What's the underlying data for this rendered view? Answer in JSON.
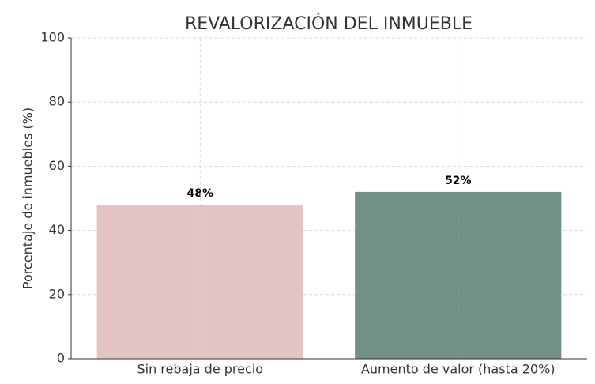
{
  "chart_data": {
    "type": "bar",
    "title": "REVALORIZACIÓN DEL INMUEBLE",
    "y_label": "Porcentaje de inmuebles (%)",
    "categories": [
      "Sin rebaja de precio",
      "Aumento de valor (hasta 20%)"
    ],
    "values": [
      48,
      52
    ],
    "value_labels": [
      "48%",
      "52%"
    ],
    "colors": [
      "#e2c4c4",
      "#728f88"
    ],
    "ylim": [
      0,
      100
    ],
    "yticks": [
      0,
      20,
      40,
      60,
      80,
      100
    ],
    "grid": true
  }
}
